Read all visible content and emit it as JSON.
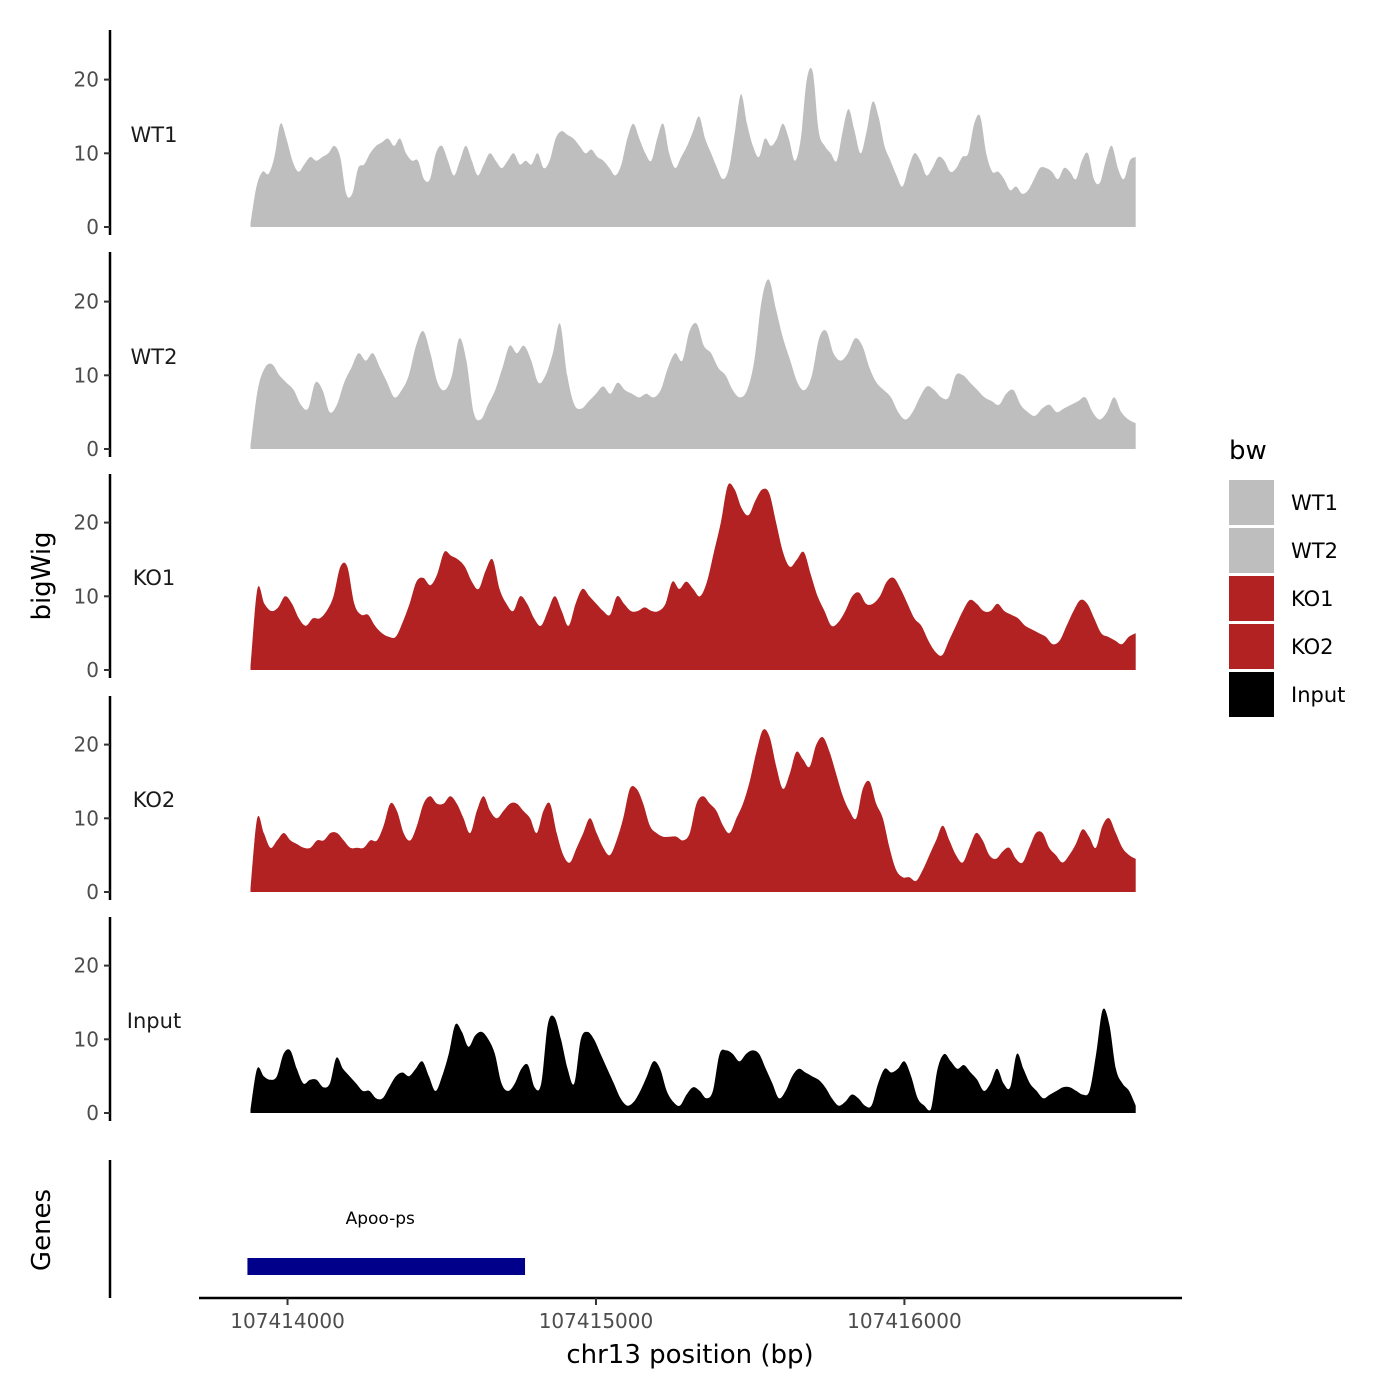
{
  "chart_data": {
    "type": "area",
    "xlabel": "chr13 position (bp)",
    "ylabel": "bigWig",
    "genes_track_label": "Genes",
    "legend": {
      "title": "bw",
      "placement": "right",
      "entries": [
        {
          "name": "WT1",
          "color": "#bebebe"
        },
        {
          "name": "WT2",
          "color": "#bebebe"
        },
        {
          "name": "KO1",
          "color": "#b22222"
        },
        {
          "name": "KO2",
          "color": "#b22222"
        },
        {
          "name": "Input",
          "color": "#000000"
        }
      ]
    },
    "xlim": [
      107413700,
      107416900
    ],
    "x_ticks": [
      107414000,
      107415000,
      107416000
    ],
    "x_tick_labels": [
      "107414000",
      "107415000",
      "107416000"
    ],
    "ylim": [
      0,
      27
    ],
    "y_ticks": [
      0,
      10,
      20
    ],
    "y_tick_labels": [
      "0",
      "10",
      "20"
    ],
    "x_start": 107413880,
    "x_end": 107416750,
    "series": [
      {
        "name": "WT1",
        "color": "#bebebe",
        "values": [
          0.5,
          5.5,
          7.5,
          7.2,
          9.5,
          14,
          12,
          9,
          7.5,
          8.5,
          9.5,
          9,
          9.5,
          10,
          11,
          9.5,
          4.5,
          4.5,
          8,
          8.5,
          10,
          11,
          11.5,
          12,
          11,
          12,
          10,
          9,
          9,
          6.5,
          6.5,
          10,
          11,
          9,
          7,
          9,
          11,
          9,
          7,
          8.5,
          10,
          9,
          8,
          9,
          10,
          8.5,
          9,
          8.5,
          10,
          8,
          9,
          12,
          13,
          12.5,
          12,
          11,
          10,
          10.5,
          9.5,
          9,
          8,
          7,
          8.5,
          12,
          14,
          12,
          10,
          9,
          12,
          14,
          10,
          8,
          9.5,
          11,
          13,
          15,
          12,
          10,
          8,
          6.5,
          8,
          13,
          18,
          14,
          11,
          9.5,
          12,
          11,
          12,
          14,
          12,
          9,
          12,
          20,
          21,
          13,
          11,
          10,
          9,
          13,
          16,
          13,
          10,
          13,
          17,
          15,
          11,
          9,
          7,
          5.5,
          8,
          10,
          9,
          7,
          8,
          9.5,
          9,
          7.5,
          8,
          9.5,
          10,
          14,
          15,
          10,
          7.5,
          7.5,
          6.5,
          5,
          5.5,
          4.5,
          5,
          6.5,
          8,
          8,
          7.5,
          6.5,
          8,
          7.5,
          6.5,
          9,
          10,
          6.5,
          6,
          9,
          11,
          8,
          6.5,
          9,
          9.5
        ]
      },
      {
        "name": "WT2",
        "color": "#bebebe",
        "values": [
          0.5,
          8,
          11,
          11.5,
          10,
          9,
          8,
          6,
          5.5,
          9,
          8,
          5,
          6,
          9,
          11,
          13,
          12,
          13,
          11,
          9,
          7,
          8,
          10,
          14,
          16,
          13,
          9,
          8,
          10,
          15,
          12,
          5,
          4,
          6,
          8,
          11,
          14,
          13,
          14,
          12,
          9,
          10,
          13,
          17,
          10,
          6,
          5.5,
          6.5,
          7.5,
          8.5,
          7.5,
          9,
          8,
          7.5,
          7,
          7.5,
          7,
          8,
          11,
          13,
          12,
          16,
          17,
          14,
          13,
          11,
          10,
          8,
          7,
          8,
          12,
          20,
          23,
          19,
          15,
          12,
          9,
          8,
          10,
          15,
          16,
          13,
          12,
          13,
          15,
          14,
          11,
          9,
          8,
          7,
          5,
          4,
          5,
          7,
          8.5,
          8,
          7,
          7,
          10,
          10,
          9,
          8,
          7,
          6.5,
          6,
          7.5,
          8,
          6,
          5,
          4.5,
          5.5,
          6,
          5,
          5.5,
          6,
          6.5,
          7,
          5,
          4,
          5,
          7,
          5,
          4,
          3.5
        ]
      },
      {
        "name": "KO1",
        "color": "#b22222",
        "values": [
          0.5,
          11,
          9,
          8,
          8.5,
          10,
          9,
          7,
          6,
          7,
          7,
          8,
          10,
          14,
          14,
          9,
          7.5,
          7.5,
          6,
          5,
          4.5,
          4.5,
          6.5,
          9,
          12,
          12.5,
          11.5,
          13,
          16,
          15.5,
          15,
          14,
          12,
          11,
          13.5,
          15,
          11,
          9,
          8,
          10,
          9,
          7,
          6,
          8,
          10,
          8,
          6,
          9,
          11,
          10,
          9,
          8,
          7.5,
          10,
          9,
          8,
          8,
          8.5,
          8,
          8,
          9,
          12,
          11,
          12,
          11,
          10,
          12,
          16,
          20,
          25,
          24.5,
          22,
          21,
          23,
          24.5,
          24,
          20,
          16,
          14,
          15,
          16,
          13,
          10,
          8,
          6,
          6.5,
          8,
          10,
          10.5,
          9,
          9,
          10,
          12,
          12.5,
          11,
          9,
          7,
          6,
          4,
          2.5,
          2,
          4,
          6,
          8,
          9.5,
          9,
          8,
          8,
          9,
          8,
          7.5,
          7,
          6,
          5.5,
          5,
          4.5,
          3.5,
          4,
          6,
          8,
          9.5,
          9,
          7,
          5,
          4.5,
          4,
          3.5,
          4.5,
          5
        ]
      },
      {
        "name": "KO2",
        "color": "#b22222",
        "values": [
          0.5,
          10,
          8,
          6,
          7,
          8,
          7,
          6.5,
          6,
          6,
          7,
          7,
          8,
          8,
          7,
          6,
          6,
          6,
          7,
          7,
          9,
          12,
          11,
          8,
          7,
          9,
          12,
          13,
          12,
          12,
          13,
          12,
          10,
          8,
          11,
          13,
          11,
          10,
          11,
          12,
          12,
          11,
          10,
          8,
          11,
          12,
          8,
          5,
          4,
          6,
          8,
          10,
          8,
          6,
          5,
          7,
          10,
          14,
          14,
          12,
          9,
          8,
          7.5,
          7.5,
          7.5,
          7,
          8,
          12,
          13,
          12,
          11,
          9,
          8,
          10,
          12,
          15,
          19,
          22,
          21,
          17,
          14,
          16,
          19,
          18,
          17,
          20,
          21,
          19,
          16,
          13,
          11,
          10,
          14,
          15,
          12,
          10,
          6,
          3,
          2,
          2,
          1.5,
          3,
          5,
          7,
          9,
          7,
          5,
          4,
          6,
          8,
          7,
          5,
          4.5,
          5.5,
          6,
          4.5,
          4,
          6,
          8,
          8,
          6,
          5,
          4,
          5,
          6.5,
          8.5,
          7.5,
          6,
          9,
          10,
          8,
          6,
          5,
          4.5
        ]
      },
      {
        "name": "Input",
        "color": "#000000",
        "values": [
          0.5,
          6,
          5,
          4.5,
          5,
          8,
          8.5,
          6,
          4,
          4.5,
          4.5,
          3.5,
          4,
          7.5,
          6,
          5,
          4,
          3,
          3,
          2,
          2,
          3.5,
          5,
          5.5,
          5,
          6,
          7,
          5,
          3,
          5,
          8,
          12,
          11,
          9,
          10.5,
          11,
          10,
          8,
          4,
          3,
          4,
          6,
          6.5,
          3.5,
          4,
          12,
          13,
          10,
          6,
          4,
          10,
          11,
          10,
          8,
          6,
          4,
          2,
          1,
          1.5,
          3,
          5,
          7,
          6,
          3,
          1.5,
          1,
          2.5,
          3.5,
          3,
          2,
          3,
          8,
          8.5,
          8,
          7,
          8,
          8.5,
          8,
          6,
          4,
          2,
          3,
          5,
          6,
          5.5,
          5,
          4.5,
          3.5,
          2,
          1,
          1.5,
          2.5,
          2,
          1,
          1,
          4,
          6,
          5.5,
          6,
          7,
          5,
          2,
          1,
          0.5,
          6,
          8,
          7,
          6,
          6.5,
          5.5,
          4.5,
          3,
          4,
          6,
          4,
          3.5,
          8,
          6,
          4,
          3,
          2,
          2.5,
          3,
          3.5,
          3.5,
          3,
          2.5,
          3,
          8,
          14,
          12,
          6,
          4,
          3,
          1
        ]
      }
    ],
    "genes": [
      {
        "name": "Apoo-ps",
        "start": 107413870,
        "end": 107414770,
        "color": "#00008b"
      }
    ]
  }
}
